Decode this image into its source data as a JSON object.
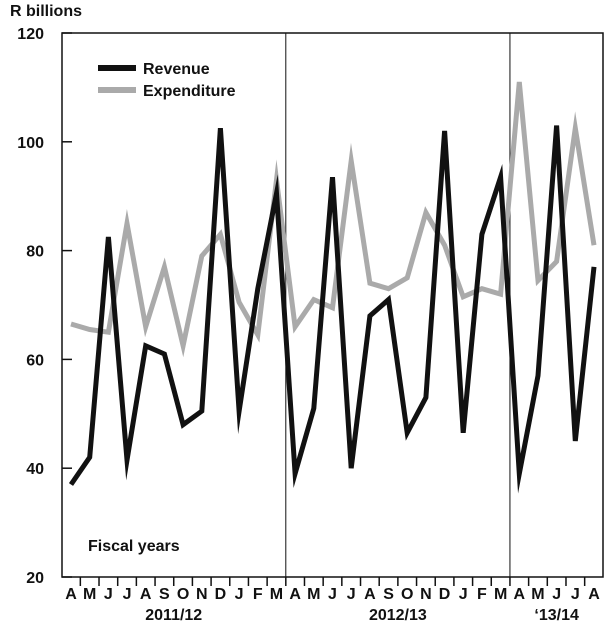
{
  "chart_data": {
    "type": "line",
    "ylabel": "R billions",
    "ylim": [
      20,
      120
    ],
    "yticks": [
      20,
      40,
      60,
      80,
      100,
      120
    ],
    "month_labels": [
      "A",
      "M",
      "J",
      "J",
      "A",
      "S",
      "O",
      "N",
      "D",
      "J",
      "F",
      "M",
      "A",
      "M",
      "J",
      "J",
      "A",
      "S",
      "O",
      "N",
      "D",
      "J",
      "F",
      "M",
      "A",
      "M",
      "J",
      "J",
      "A"
    ],
    "fiscal_years": [
      {
        "label": "2011/12",
        "start": 0,
        "end": 11
      },
      {
        "label": "2012/13",
        "start": 12,
        "end": 23
      },
      {
        "label": "‘13/14",
        "start": 24,
        "end": 28
      }
    ],
    "annotation": "Fiscal years",
    "legend_position": "top-left",
    "series": [
      {
        "name": "Revenue",
        "color": "#111111",
        "values": [
          37,
          42,
          82.5,
          41.5,
          62.5,
          61,
          48,
          50.5,
          102.5,
          50.5,
          73,
          90.5,
          39,
          51,
          93.5,
          40,
          68,
          71,
          46.5,
          53,
          102,
          46.5,
          83,
          93.5,
          39,
          57,
          103,
          45,
          77
        ]
      },
      {
        "name": "Expenditure",
        "color": "#aaaaaa",
        "values": [
          66.5,
          65.5,
          65,
          85,
          66,
          77,
          62.5,
          79,
          83,
          70.5,
          64.5,
          93,
          66,
          71,
          69.5,
          96.5,
          74,
          73,
          75,
          87,
          81,
          71.5,
          73,
          72,
          111,
          74.5,
          78,
          102.5,
          81
        ]
      }
    ]
  }
}
